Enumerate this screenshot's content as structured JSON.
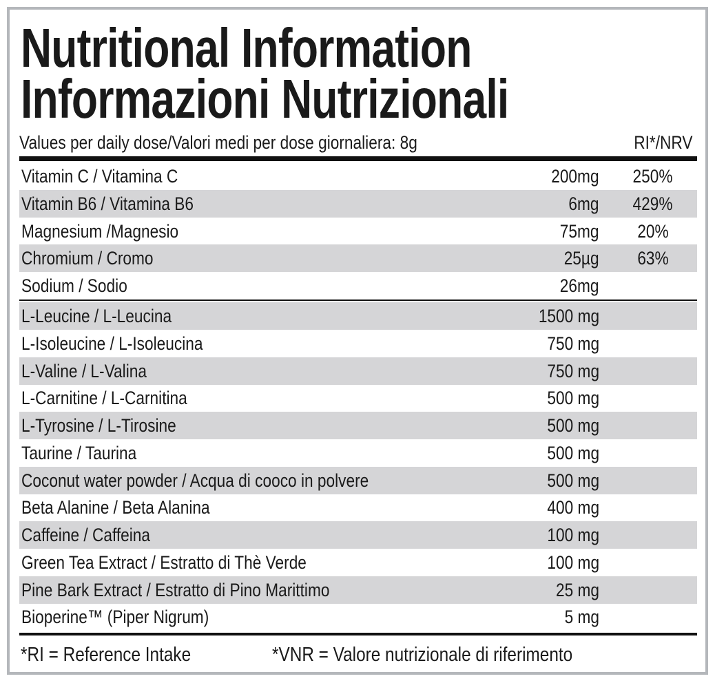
{
  "header": {
    "title_en": "Nutritional Information",
    "title_it": "Informazioni Nutrizionali",
    "dose": "Values per daily dose/Valori medi per dose giornaliera: 8g",
    "ri_heading": "RI*/NRV"
  },
  "vitamins": [
    {
      "name": "Vitamin C / Vitamina C",
      "amount": "200mg",
      "ri": "250%"
    },
    {
      "name": "Vitamin B6 / Vitamina B6",
      "amount": "6mg",
      "ri": "429%"
    },
    {
      "name": "Magnesium /Magnesio",
      "amount": "75mg",
      "ri": "20%"
    },
    {
      "name": "Chromium / Cromo",
      "amount": "25µg",
      "ri": "63%"
    },
    {
      "name": "Sodium / Sodio",
      "amount": "26mg"
    }
  ],
  "amino_acids": [
    {
      "name": "L-Leucine / L-Leucina",
      "amount": "1500 mg"
    },
    {
      "name": "L-Isoleucine / L-Isoleucina",
      "amount": "750 mg"
    },
    {
      "name": "L-Valine / L-Valina",
      "amount": "750 mg"
    },
    {
      "name": "L-Carnitine / L-Carnitina",
      "amount": "500 mg"
    },
    {
      "name": "L-Tyrosine / L-Tirosine",
      "amount": "500 mg"
    },
    {
      "name": "Taurine / Taurina",
      "amount": "500 mg"
    },
    {
      "name": "Coconut water powder / Acqua di cooco in polvere",
      "amount": "500 mg"
    },
    {
      "name": "Beta Alanine / Beta Alanina",
      "amount": "400 mg"
    },
    {
      "name": "Caffeine / Caffeina",
      "amount": "100 mg"
    },
    {
      "name": "Green Tea Extract / Estratto di Thè Verde",
      "amount": "100 mg"
    },
    {
      "name": "Pine Bark Extract / Estratto di Pino Marittimo",
      "amount": "25 mg"
    },
    {
      "name": "Bioperine™ (Piper Nigrum)",
      "amount": "5 mg"
    }
  ],
  "footer": {
    "ri_note": "*RI = Reference Intake",
    "vnr_note": "*VNR = Valore nutrizionale di riferimento"
  }
}
